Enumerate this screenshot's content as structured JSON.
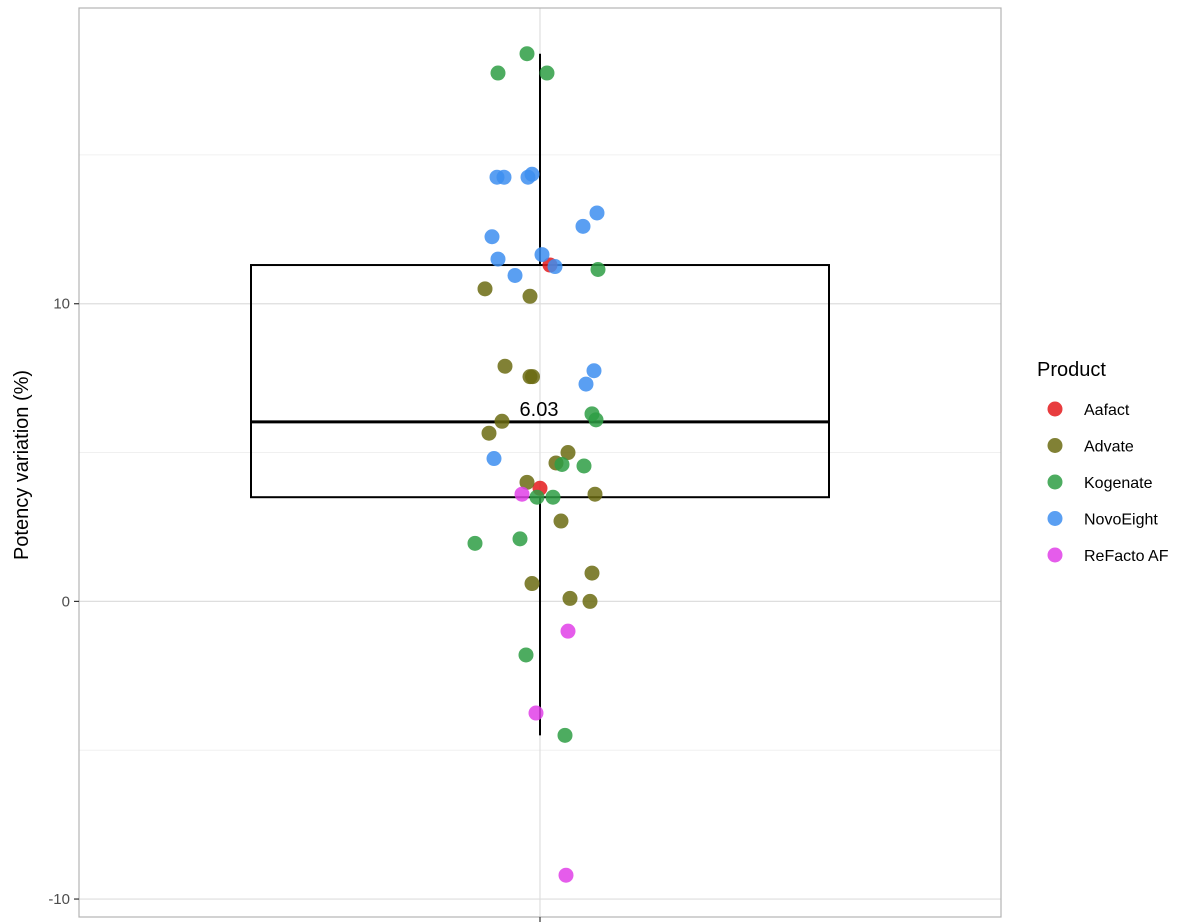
{
  "chart_data": {
    "type": "scatter",
    "overlay": "boxplot",
    "ylabel": "Potency variation (%)",
    "ylim": [
      -10.2,
      19.7
    ],
    "y_ticks": [
      -10,
      0,
      10
    ],
    "y_tick_labels": [
      "-10",
      "0",
      "10"
    ],
    "grid": true,
    "legend": {
      "title": "Product",
      "placement": "right"
    },
    "box": {
      "q1": 3.5,
      "median": 6.03,
      "q3": 11.3,
      "whisker_low": -4.5,
      "whisker_high": 18.4
    },
    "median_label": "6.03",
    "series": [
      {
        "name": "Aafact",
        "color": "#e41a1c",
        "points": [
          {
            "x": 0.02,
            "y": 11.3
          },
          {
            "x": 0.0,
            "y": 3.8
          }
        ]
      },
      {
        "name": "Advate",
        "color": "#6b6b12",
        "points": [
          {
            "x": -0.11,
            "y": 10.5
          },
          {
            "x": -0.02,
            "y": 10.25
          },
          {
            "x": -0.07,
            "y": 7.9
          },
          {
            "x": -0.02,
            "y": 7.55
          },
          {
            "x": -0.015,
            "y": 7.55
          },
          {
            "x": -0.076,
            "y": 6.05
          },
          {
            "x": -0.102,
            "y": 5.65
          },
          {
            "x": 0.056,
            "y": 5.0
          },
          {
            "x": 0.032,
            "y": 4.65
          },
          {
            "x": -0.026,
            "y": 4.0
          },
          {
            "x": 0.11,
            "y": 3.6
          },
          {
            "x": 0.042,
            "y": 2.7
          },
          {
            "x": 0.104,
            "y": 0.95
          },
          {
            "x": -0.016,
            "y": 0.6
          },
          {
            "x": 0.06,
            "y": 0.1
          },
          {
            "x": 0.1,
            "y": 0.0
          }
        ]
      },
      {
        "name": "Kogenate",
        "color": "#2e9e44",
        "points": [
          {
            "x": -0.026,
            "y": 18.4
          },
          {
            "x": -0.084,
            "y": 17.75
          },
          {
            "x": 0.014,
            "y": 17.75
          },
          {
            "x": 0.116,
            "y": 11.15
          },
          {
            "x": 0.104,
            "y": 6.3
          },
          {
            "x": 0.112,
            "y": 6.1
          },
          {
            "x": 0.044,
            "y": 4.6
          },
          {
            "x": 0.088,
            "y": 4.55
          },
          {
            "x": 0.026,
            "y": 3.5
          },
          {
            "x": -0.006,
            "y": 3.5
          },
          {
            "x": -0.04,
            "y": 2.1
          },
          {
            "x": -0.13,
            "y": 1.95
          },
          {
            "x": -0.028,
            "y": -1.8
          },
          {
            "x": 0.05,
            "y": -4.5
          }
        ]
      },
      {
        "name": "NovoEight",
        "color": "#3d8ef0",
        "points": [
          {
            "x": -0.086,
            "y": 14.25
          },
          {
            "x": -0.072,
            "y": 14.25
          },
          {
            "x": -0.024,
            "y": 14.25
          },
          {
            "x": -0.016,
            "y": 14.35
          },
          {
            "x": 0.114,
            "y": 13.05
          },
          {
            "x": 0.086,
            "y": 12.6
          },
          {
            "x": -0.096,
            "y": 12.25
          },
          {
            "x": 0.004,
            "y": 11.65
          },
          {
            "x": -0.084,
            "y": 11.5
          },
          {
            "x": 0.03,
            "y": 11.25
          },
          {
            "x": -0.05,
            "y": 10.95
          },
          {
            "x": 0.108,
            "y": 7.75
          },
          {
            "x": 0.092,
            "y": 7.3
          },
          {
            "x": -0.092,
            "y": 4.8
          }
        ]
      },
      {
        "name": "ReFacto AF",
        "color": "#e040e8",
        "points": [
          {
            "x": -0.036,
            "y": 3.6
          },
          {
            "x": 0.056,
            "y": -1.0
          },
          {
            "x": -0.008,
            "y": -3.75
          },
          {
            "x": 0.052,
            "y": -9.2
          }
        ]
      }
    ]
  }
}
